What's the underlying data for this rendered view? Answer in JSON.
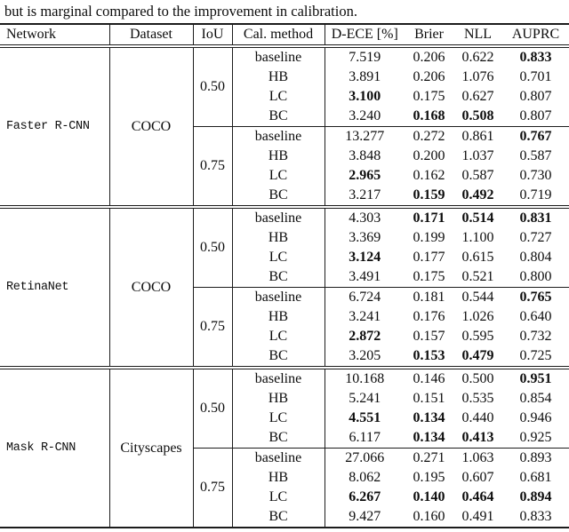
{
  "caption": "but is marginal compared to the improvement in calibration.",
  "table": {
    "headers": [
      "Network",
      "Dataset",
      "IoU",
      "Cal. method",
      "D-ECE [%]",
      "Brier",
      "NLL",
      "AUPRC"
    ],
    "metric_keys": [
      "dece",
      "brier",
      "nll",
      "auprc"
    ],
    "groups": [
      {
        "network": "Faster R-CNN",
        "dataset": "COCO",
        "blocks": [
          {
            "iou": "0.50",
            "rows": [
              {
                "method": "baseline",
                "values": [
                  "7.519",
                  "0.206",
                  "0.622",
                  "0.833"
                ],
                "bold": [
                  3
                ]
              },
              {
                "method": "HB",
                "values": [
                  "3.891",
                  "0.206",
                  "1.076",
                  "0.701"
                ],
                "bold": []
              },
              {
                "method": "LC",
                "values": [
                  "3.100",
                  "0.175",
                  "0.627",
                  "0.807"
                ],
                "bold": [
                  0
                ]
              },
              {
                "method": "BC",
                "values": [
                  "3.240",
                  "0.168",
                  "0.508",
                  "0.807"
                ],
                "bold": [
                  1,
                  2
                ]
              }
            ]
          },
          {
            "iou": "0.75",
            "rows": [
              {
                "method": "baseline",
                "values": [
                  "13.277",
                  "0.272",
                  "0.861",
                  "0.767"
                ],
                "bold": [
                  3
                ]
              },
              {
                "method": "HB",
                "values": [
                  "3.848",
                  "0.200",
                  "1.037",
                  "0.587"
                ],
                "bold": []
              },
              {
                "method": "LC",
                "values": [
                  "2.965",
                  "0.162",
                  "0.587",
                  "0.730"
                ],
                "bold": [
                  0
                ]
              },
              {
                "method": "BC",
                "values": [
                  "3.217",
                  "0.159",
                  "0.492",
                  "0.719"
                ],
                "bold": [
                  1,
                  2
                ]
              }
            ]
          }
        ]
      },
      {
        "network": "RetinaNet",
        "dataset": "COCO",
        "blocks": [
          {
            "iou": "0.50",
            "rows": [
              {
                "method": "baseline",
                "values": [
                  "4.303",
                  "0.171",
                  "0.514",
                  "0.831"
                ],
                "bold": [
                  1,
                  2,
                  3
                ]
              },
              {
                "method": "HB",
                "values": [
                  "3.369",
                  "0.199",
                  "1.100",
                  "0.727"
                ],
                "bold": []
              },
              {
                "method": "LC",
                "values": [
                  "3.124",
                  "0.177",
                  "0.615",
                  "0.804"
                ],
                "bold": [
                  0
                ]
              },
              {
                "method": "BC",
                "values": [
                  "3.491",
                  "0.175",
                  "0.521",
                  "0.800"
                ],
                "bold": []
              }
            ]
          },
          {
            "iou": "0.75",
            "rows": [
              {
                "method": "baseline",
                "values": [
                  "6.724",
                  "0.181",
                  "0.544",
                  "0.765"
                ],
                "bold": [
                  3
                ]
              },
              {
                "method": "HB",
                "values": [
                  "3.241",
                  "0.176",
                  "1.026",
                  "0.640"
                ],
                "bold": []
              },
              {
                "method": "LC",
                "values": [
                  "2.872",
                  "0.157",
                  "0.595",
                  "0.732"
                ],
                "bold": [
                  0
                ]
              },
              {
                "method": "BC",
                "values": [
                  "3.205",
                  "0.153",
                  "0.479",
                  "0.725"
                ],
                "bold": [
                  1,
                  2
                ]
              }
            ]
          }
        ]
      },
      {
        "network": "Mask R-CNN",
        "dataset": "Cityscapes",
        "blocks": [
          {
            "iou": "0.50",
            "rows": [
              {
                "method": "baseline",
                "values": [
                  "10.168",
                  "0.146",
                  "0.500",
                  "0.951"
                ],
                "bold": [
                  3
                ]
              },
              {
                "method": "HB",
                "values": [
                  "5.241",
                  "0.151",
                  "0.535",
                  "0.854"
                ],
                "bold": []
              },
              {
                "method": "LC",
                "values": [
                  "4.551",
                  "0.134",
                  "0.440",
                  "0.946"
                ],
                "bold": [
                  0,
                  1
                ]
              },
              {
                "method": "BC",
                "values": [
                  "6.117",
                  "0.134",
                  "0.413",
                  "0.925"
                ],
                "bold": [
                  1,
                  2
                ]
              }
            ]
          },
          {
            "iou": "0.75",
            "rows": [
              {
                "method": "baseline",
                "values": [
                  "27.066",
                  "0.271",
                  "1.063",
                  "0.893"
                ],
                "bold": []
              },
              {
                "method": "HB",
                "values": [
                  "8.062",
                  "0.195",
                  "0.607",
                  "0.681"
                ],
                "bold": []
              },
              {
                "method": "LC",
                "values": [
                  "6.267",
                  "0.140",
                  "0.464",
                  "0.894"
                ],
                "bold": [
                  0,
                  1,
                  2,
                  3
                ]
              },
              {
                "method": "BC",
                "values": [
                  "9.427",
                  "0.160",
                  "0.491",
                  "0.833"
                ],
                "bold": []
              }
            ]
          }
        ]
      }
    ]
  }
}
